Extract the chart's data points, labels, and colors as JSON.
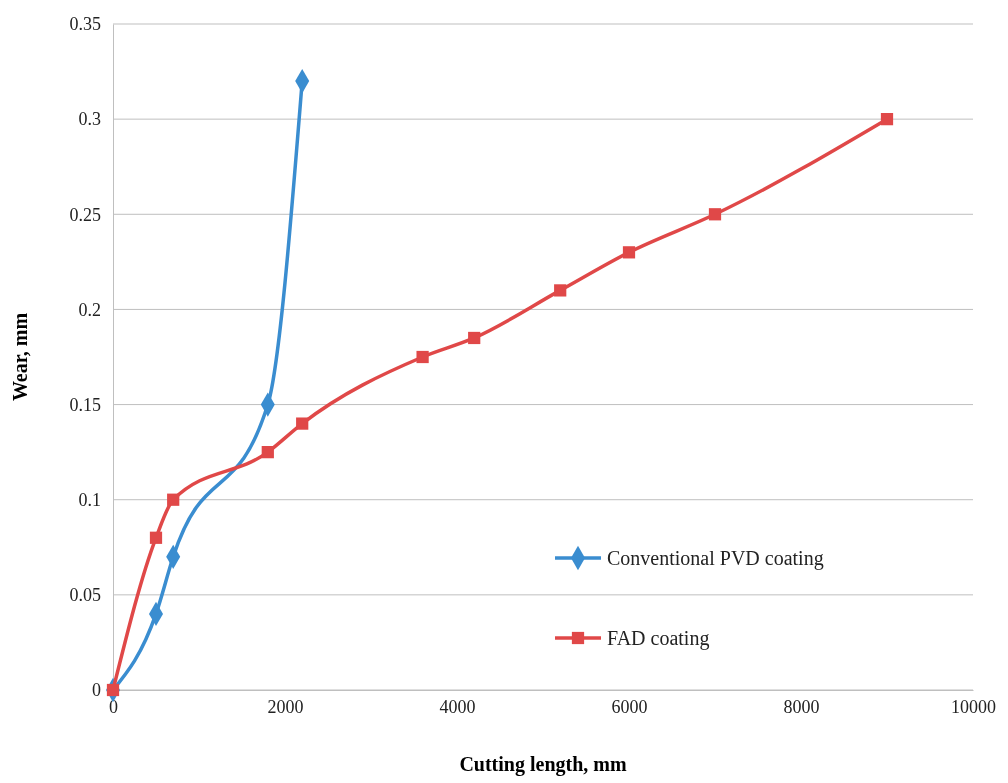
{
  "chart_data": {
    "type": "line",
    "xlabel": "Cutting length, mm",
    "ylabel": "Wear, mm",
    "xlim": [
      0,
      10000
    ],
    "xticks": [
      0,
      2000,
      4000,
      6000,
      8000,
      10000
    ],
    "ylim": [
      0,
      0.35
    ],
    "yticks": [
      0,
      0.05,
      0.1,
      0.15,
      0.2,
      0.25,
      0.3,
      0.35
    ],
    "grid": "y",
    "legend": "bottom right",
    "series": [
      {
        "name": "Conventional PVD coating",
        "color": "#3a8dd0",
        "marker": "diamond",
        "x": [
          0,
          500,
          700,
          1800,
          2200
        ],
        "values": [
          0,
          0.04,
          0.07,
          0.15,
          0.32
        ]
      },
      {
        "name": "FAD coating",
        "color": "#e04848",
        "marker": "square",
        "x": [
          0,
          500,
          700,
          1800,
          2200,
          3600,
          4200,
          5200,
          6000,
          7000,
          9000
        ],
        "values": [
          0,
          0.08,
          0.1,
          0.125,
          0.14,
          0.175,
          0.185,
          0.21,
          0.23,
          0.25,
          0.3
        ]
      }
    ]
  }
}
